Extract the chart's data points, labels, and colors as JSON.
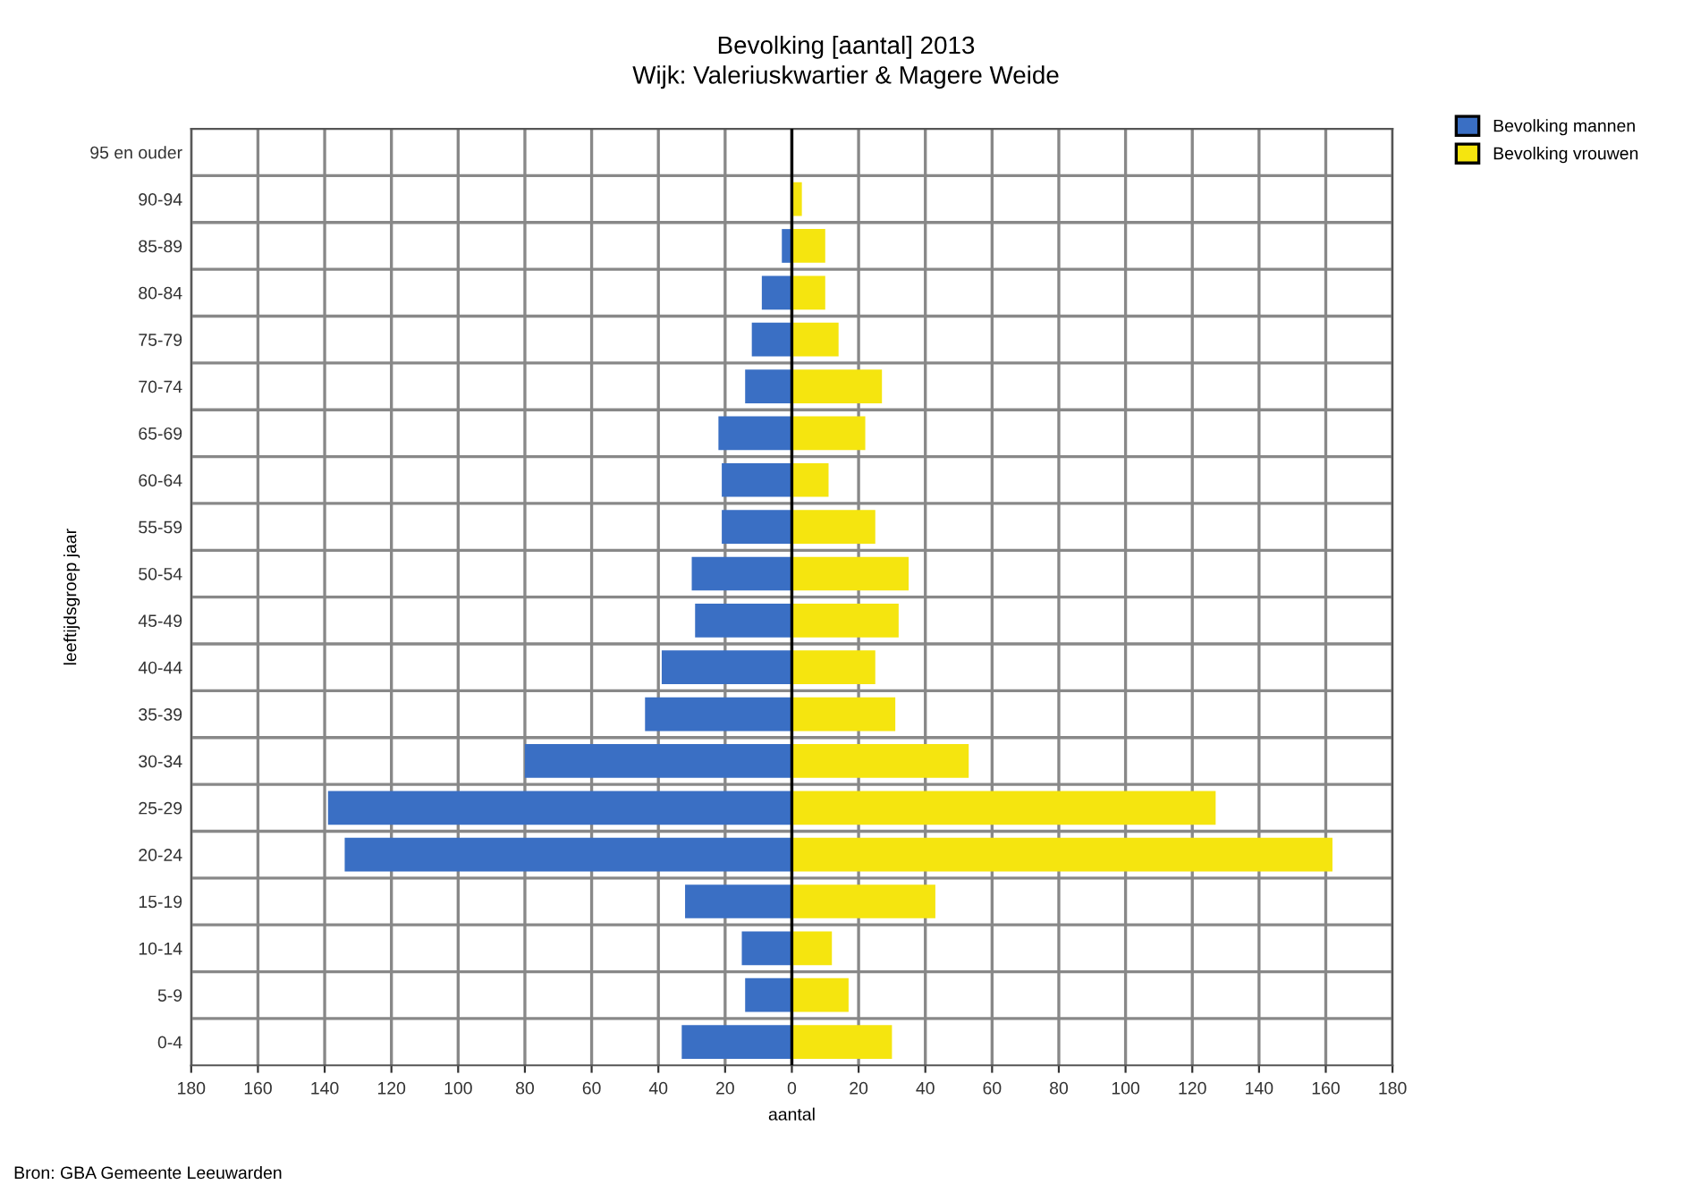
{
  "chart_data": {
    "type": "bar",
    "orientation": "horizontal",
    "title": "Bevolking [aantal] 2013",
    "subtitle": "Wijk: Valeriuskwartier & Magere Weide",
    "xlabel": "aantal",
    "ylabel": "leeftijdsgroep jaar",
    "categories": [
      "95 en ouder",
      "90-94",
      "85-89",
      "80-84",
      "75-79",
      "70-74",
      "65-69",
      "60-64",
      "55-59",
      "50-54",
      "45-49",
      "40-44",
      "35-39",
      "30-34",
      "25-29",
      "20-24",
      "15-19",
      "10-14",
      "5-9",
      "0-4"
    ],
    "series": [
      {
        "name": "Bevolking mannen",
        "color": "#3a6fc4",
        "values": [
          0,
          0,
          -3,
          -9,
          -12,
          -14,
          -22,
          -21,
          -21,
          -30,
          -29,
          -39,
          -44,
          -80,
          -139,
          -134,
          -32,
          -15,
          -14,
          -33
        ]
      },
      {
        "name": "Bevolking vrouwen",
        "color": "#f5e50f",
        "values": [
          0,
          3,
          10,
          10,
          14,
          27,
          22,
          11,
          25,
          35,
          32,
          25,
          31,
          53,
          127,
          162,
          43,
          12,
          17,
          30
        ]
      }
    ],
    "xlim": [
      -180,
      180
    ],
    "xticks": [
      {
        "value": -180,
        "label": "180"
      },
      {
        "value": -160,
        "label": "160"
      },
      {
        "value": -140,
        "label": "140"
      },
      {
        "value": -120,
        "label": "120"
      },
      {
        "value": -100,
        "label": "100"
      },
      {
        "value": -80,
        "label": "80"
      },
      {
        "value": -60,
        "label": "60"
      },
      {
        "value": -40,
        "label": "40"
      },
      {
        "value": -20,
        "label": "20"
      },
      0,
      20,
      40,
      60,
      80,
      100,
      120,
      140,
      160,
      180
    ],
    "grid": true,
    "legend": "top right",
    "stacked": true,
    "annotations": [
      "Bron: GBA Gemeente Leeuwarden"
    ]
  }
}
